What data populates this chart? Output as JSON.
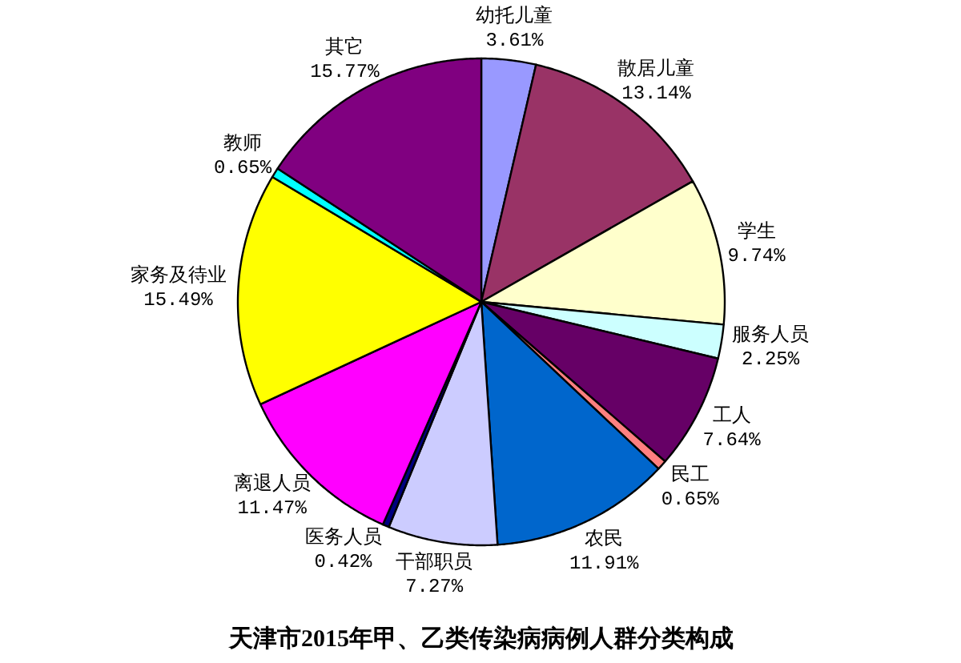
{
  "chart_data": {
    "type": "pie",
    "title": "天津市2015年甲、乙类传染病病例人群分类构成",
    "categories": [
      "幼托儿童",
      "散居儿童",
      "学生",
      "服务人员",
      "工人",
      "民工",
      "农民",
      "干部职员",
      "医务人员",
      "离退人员",
      "家务及待业",
      "教师",
      "其它"
    ],
    "values": [
      3.61,
      13.14,
      9.74,
      2.25,
      7.64,
      0.65,
      11.91,
      7.27,
      0.42,
      11.47,
      15.49,
      0.65,
      15.77
    ],
    "value_labels": [
      "3.61%",
      "13.14%",
      "9.74%",
      "2.25%",
      "7.64%",
      "0.65%",
      "11.91%",
      "7.27%",
      "0.42%",
      "11.47%",
      "15.49%",
      "0.65%",
      "15.77%"
    ],
    "colors": [
      "#9999ff",
      "#993366",
      "#ffffcc",
      "#ccffff",
      "#660066",
      "#ff8080",
      "#0066cc",
      "#ccccff",
      "#000080",
      "#ff00ff",
      "#ffff00",
      "#00ffff",
      "#800080"
    ]
  }
}
